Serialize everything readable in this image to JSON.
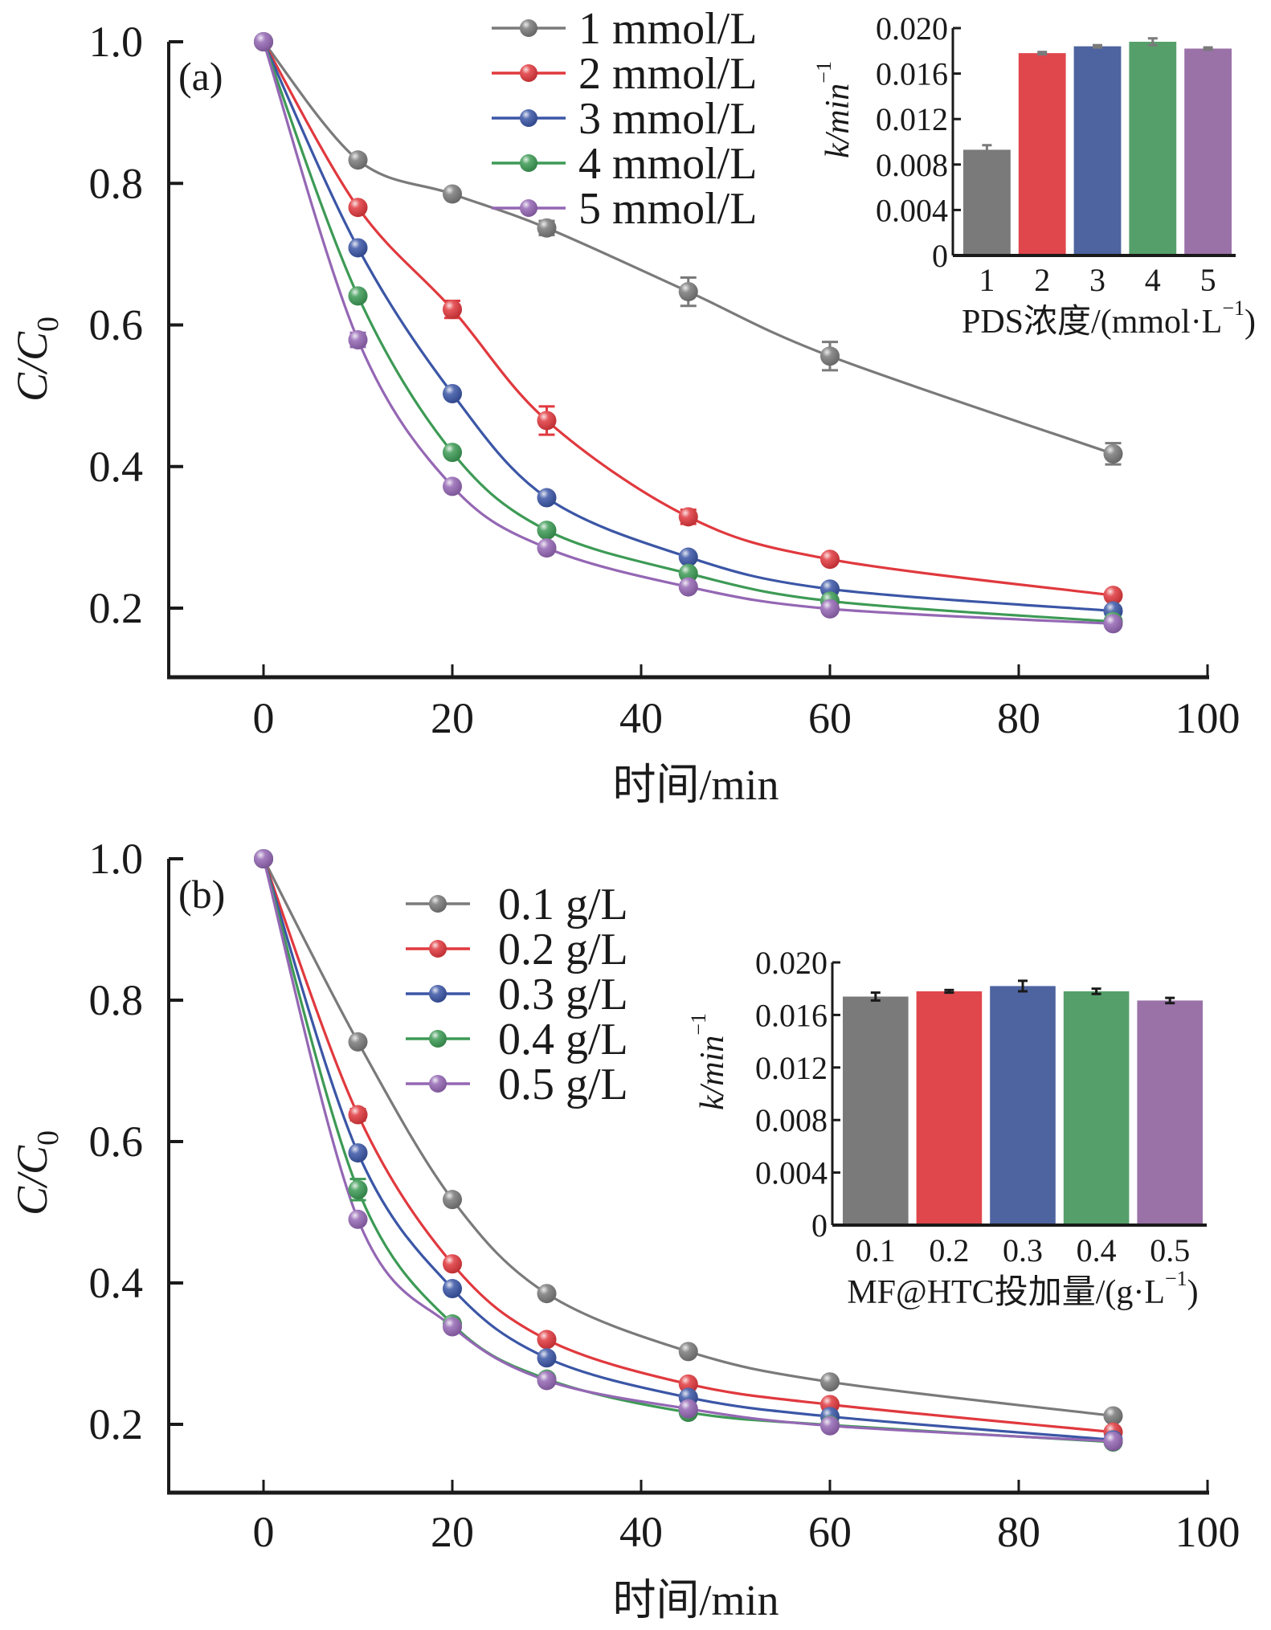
{
  "chart_data": [
    {
      "id": "a",
      "type": "line",
      "panel_label": "(a)",
      "title": "",
      "xlabel": "时间/min",
      "ylabel": "C/C0",
      "ylabel_main": "C/C",
      "ylabel_sub": "0",
      "xlim": [
        -10,
        100
      ],
      "ylim": [
        0.1,
        1.0
      ],
      "xticks": [
        0,
        20,
        40,
        60,
        80,
        100
      ],
      "xtick_labels": [
        "0",
        "20",
        "40",
        "60",
        "80",
        "100"
      ],
      "yticks": [
        0.2,
        0.4,
        0.6,
        0.8,
        1.0
      ],
      "ytick_labels": [
        "0.2",
        "0.4",
        "0.6",
        "0.8",
        "1.0"
      ],
      "grid": false,
      "legend_position": "top-center",
      "x": [
        0,
        10,
        20,
        30,
        45,
        60,
        90
      ],
      "series": [
        {
          "name": "1 mmol/L",
          "color": "#7a7a7a",
          "values": [
            1.0,
            0.833,
            0.785,
            0.737,
            0.647,
            0.556,
            0.418
          ],
          "errors": [
            0,
            0.005,
            0.005,
            0.01,
            0.02,
            0.02,
            0.015
          ]
        },
        {
          "name": "2 mmol/L",
          "color": "#e0393e",
          "values": [
            1.0,
            0.766,
            0.622,
            0.465,
            0.329,
            0.269,
            0.218
          ],
          "errors": [
            0,
            0.005,
            0.012,
            0.02,
            0.01,
            0.005,
            0.005
          ]
        },
        {
          "name": "3 mmol/L",
          "color": "#3b56a6",
          "values": [
            1.0,
            0.709,
            0.503,
            0.356,
            0.272,
            0.227,
            0.196
          ],
          "errors": [
            0,
            0.005,
            0.005,
            0.005,
            0.005,
            0.005,
            0.005
          ]
        },
        {
          "name": "4 mmol/L",
          "color": "#3d9a55",
          "values": [
            1.0,
            0.641,
            0.42,
            0.31,
            0.249,
            0.21,
            0.181
          ],
          "errors": [
            0,
            0.005,
            0.006,
            0.005,
            0.005,
            0.005,
            0.005
          ]
        },
        {
          "name": "5 mmol/L",
          "color": "#9467b4",
          "values": [
            1.0,
            0.579,
            0.372,
            0.285,
            0.23,
            0.199,
            0.178
          ],
          "errors": [
            0,
            0.01,
            0.005,
            0.005,
            0.005,
            0.005,
            0.005
          ]
        }
      ],
      "inset": {
        "type": "bar",
        "xlabel_main": "PDS浓度/(mmol·L",
        "xlabel_sup": "−1",
        "xlabel_close": ")",
        "ylabel_main": "k/min",
        "ylabel_sup": "−1",
        "categories": [
          "1",
          "2",
          "3",
          "4",
          "5"
        ],
        "values": [
          0.0093,
          0.0178,
          0.0184,
          0.0188,
          0.0182
        ],
        "errors": [
          0.0004,
          0.0001,
          0.0001,
          0.0003,
          0.0001
        ],
        "colors": [
          "#7a7a7a",
          "#e0474c",
          "#4e64a0",
          "#55a06a",
          "#9a72a8"
        ],
        "error_color": "#7a7a7a",
        "ylim": [
          0,
          0.02
        ],
        "yticks": [
          0,
          0.004,
          0.008,
          0.012,
          0.016,
          0.02
        ],
        "ytick_labels": [
          "0",
          "0.004",
          "0.008",
          "0.012",
          "0.016",
          "0.020"
        ]
      }
    },
    {
      "id": "b",
      "type": "line",
      "panel_label": "(b)",
      "title": "",
      "xlabel": "时间/min",
      "ylabel": "C/C0",
      "ylabel_main": "C/C",
      "ylabel_sub": "0",
      "xlim": [
        -10,
        100
      ],
      "ylim": [
        0.1,
        1.0
      ],
      "xticks": [
        0,
        20,
        40,
        60,
        80,
        100
      ],
      "xtick_labels": [
        "0",
        "20",
        "40",
        "60",
        "80",
        "100"
      ],
      "yticks": [
        0.2,
        0.4,
        0.6,
        0.8,
        1.0
      ],
      "ytick_labels": [
        "0.2",
        "0.4",
        "0.6",
        "0.8",
        "1.0"
      ],
      "grid": false,
      "legend_position": "top-center",
      "x": [
        0,
        10,
        20,
        30,
        45,
        60,
        90
      ],
      "series": [
        {
          "name": "0.1 g/L",
          "color": "#7a7a7a",
          "values": [
            1.0,
            0.741,
            0.518,
            0.385,
            0.303,
            0.26,
            0.212
          ],
          "errors": [
            0,
            0.005,
            0.005,
            0.005,
            0.005,
            0.005,
            0.005
          ]
        },
        {
          "name": "0.2 g/L",
          "color": "#e0393e",
          "values": [
            1.0,
            0.638,
            0.427,
            0.32,
            0.257,
            0.228,
            0.189
          ],
          "errors": [
            0,
            0.008,
            0.005,
            0.005,
            0.005,
            0.005,
            0.005
          ]
        },
        {
          "name": "0.3 g/L",
          "color": "#3b56a6",
          "values": [
            1.0,
            0.584,
            0.392,
            0.294,
            0.238,
            0.211,
            0.178
          ],
          "errors": [
            0,
            0.005,
            0.005,
            0.005,
            0.005,
            0.005,
            0.005
          ]
        },
        {
          "name": "0.4 g/L",
          "color": "#3d9a55",
          "values": [
            1.0,
            0.532,
            0.342,
            0.264,
            0.217,
            0.199,
            0.175
          ],
          "errors": [
            0,
            0.015,
            0.005,
            0.005,
            0.005,
            0.005,
            0.005
          ]
        },
        {
          "name": "0.5 g/L",
          "color": "#9467b4",
          "values": [
            1.0,
            0.49,
            0.338,
            0.262,
            0.222,
            0.198,
            0.176
          ],
          "errors": [
            0,
            0.005,
            0.005,
            0.005,
            0.005,
            0.005,
            0.005
          ]
        }
      ],
      "inset": {
        "type": "bar",
        "xlabel_main": "MF@HTC投加量/(g·L",
        "xlabel_sup": "−1",
        "xlabel_close": ")",
        "ylabel_main": "k/min",
        "ylabel_sup": "−1",
        "categories": [
          "0.1",
          "0.2",
          "0.3",
          "0.4",
          "0.5"
        ],
        "values": [
          0.0174,
          0.0178,
          0.0182,
          0.0178,
          0.0171
        ],
        "errors": [
          0.0003,
          0.0001,
          0.0004,
          0.0002,
          0.0002
        ],
        "colors": [
          "#7a7a7a",
          "#e0474c",
          "#4e64a0",
          "#55a06a",
          "#9a72a8"
        ],
        "error_color": "#1a1a1a",
        "ylim": [
          0,
          0.02
        ],
        "yticks": [
          0,
          0.004,
          0.008,
          0.012,
          0.016,
          0.02
        ],
        "ytick_labels": [
          "0",
          "0.004",
          "0.008",
          "0.012",
          "0.016",
          "0.020"
        ]
      }
    }
  ]
}
